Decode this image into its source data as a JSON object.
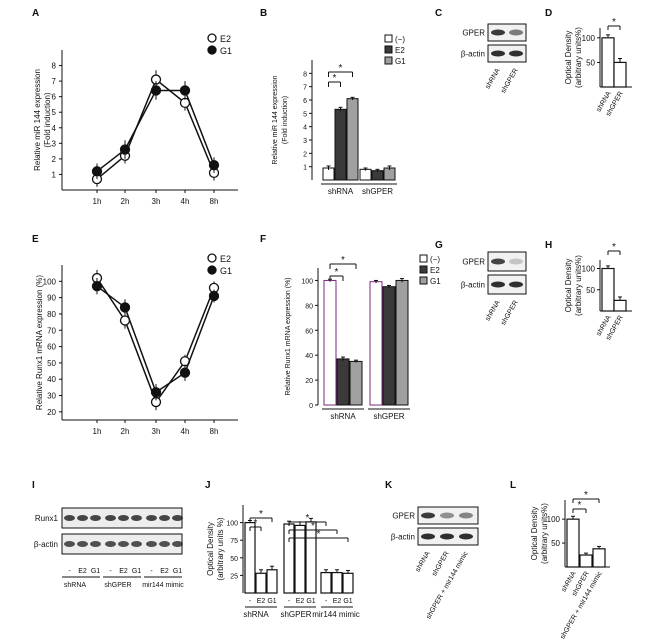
{
  "panels": [
    {
      "id": "A",
      "letter": "A",
      "type": "line",
      "ylabel": "Relative miR 144 expression",
      "ylabel2": "(Fold induction)",
      "categories": [
        "1h",
        "2h",
        "3h",
        "4h",
        "8h"
      ],
      "yticks": [
        "1",
        "2",
        "3",
        "4",
        "5",
        "6",
        "7",
        "8"
      ],
      "legend": [
        "E2",
        "G1"
      ]
    },
    {
      "id": "B",
      "letter": "B",
      "type": "bar",
      "ylabel": "Relative miR 144 expression",
      "ylabel2": "(Fold induction)",
      "yticks": [
        "1",
        "2",
        "3",
        "4",
        "5",
        "6",
        "7",
        "8"
      ],
      "groups": [
        "shRNA",
        "shGPER"
      ],
      "legend": [
        "(−)",
        "E2",
        "G1"
      ]
    },
    {
      "id": "C",
      "letter": "C",
      "type": "blot",
      "rows": [
        "GPER",
        "β-actin"
      ],
      "lanes": [
        "shRNA",
        "shGPER"
      ]
    },
    {
      "id": "D",
      "letter": "D",
      "type": "bar",
      "ylabel": "Optical Density",
      "ylabel2": "(arbitrary units%)",
      "yticks": [
        "50",
        "100"
      ],
      "groups": [
        "shRNA",
        "shGPER"
      ]
    },
    {
      "id": "E",
      "letter": "E",
      "type": "line",
      "ylabel": "Relative Runx1 mRNA expression (%)",
      "categories": [
        "1h",
        "2h",
        "3h",
        "4h",
        "8h"
      ],
      "yticks": [
        "20",
        "30",
        "40",
        "50",
        "60",
        "70",
        "80",
        "90",
        "100"
      ],
      "legend": [
        "E2",
        "G1"
      ]
    },
    {
      "id": "F",
      "letter": "F",
      "type": "bar",
      "ylabel": "Relative Runx1 mRNA expression (%)",
      "yticks": [
        "0",
        "20",
        "40",
        "60",
        "80",
        "100"
      ],
      "groups": [
        "shRNA",
        "shGPER"
      ],
      "legend": [
        "(−)",
        "E2",
        "G1"
      ]
    },
    {
      "id": "G",
      "letter": "G",
      "type": "blot",
      "rows": [
        "GPER",
        "β-actin"
      ],
      "lanes": [
        "shRNA",
        "shGPER"
      ]
    },
    {
      "id": "H",
      "letter": "H",
      "type": "bar",
      "ylabel": "Optical Density",
      "ylabel2": "(arbitrary units%)",
      "yticks": [
        "50",
        "100"
      ],
      "groups": [
        "shRNA",
        "shGPER"
      ]
    },
    {
      "id": "I",
      "letter": "I",
      "type": "blot",
      "rows": [
        "Runx1",
        "β-actin"
      ],
      "lane_labels": [
        "-",
        "E2",
        "G1",
        "-",
        "E2",
        "G1",
        "-",
        "E2",
        "G1"
      ],
      "groups": [
        "shRNA",
        "shGPER",
        "mir144 mimic"
      ]
    },
    {
      "id": "J",
      "letter": "J",
      "type": "bar",
      "ylabel": "Optical Density",
      "ylabel2": "(arbitrary units %)",
      "yticks": [
        "25",
        "50",
        "75",
        "100"
      ],
      "lane_labels": [
        "-",
        "E2",
        "G1",
        "-",
        "E2",
        "G1",
        "-",
        "E2",
        "G1"
      ],
      "groups": [
        "shRNA",
        "shGPER",
        "mir144 mimic"
      ]
    },
    {
      "id": "K",
      "letter": "K",
      "type": "blot",
      "rows": [
        "GPER",
        "β-actin"
      ],
      "lanes": [
        "shRNA",
        "shGPER",
        "shGPER + mir144 mimic"
      ]
    },
    {
      "id": "L",
      "letter": "L",
      "type": "bar",
      "ylabel": "Optical Density",
      "ylabel2": "(arbitrary units%)",
      "yticks": [
        "50",
        "100"
      ],
      "groups": [
        "shRNA",
        "shGPER",
        "shGPER + mir144 mimic"
      ]
    }
  ],
  "chart_data": [
    {
      "panel": "A",
      "type": "line",
      "categories": [
        "1h",
        "2h",
        "3h",
        "4h",
        "8h"
      ],
      "series": [
        {
          "name": "E2",
          "values": [
            0.7,
            2.2,
            7.1,
            5.6,
            1.1
          ],
          "errors": [
            0.5,
            0.5,
            0.6,
            0.5,
            0.5
          ]
        },
        {
          "name": "G1",
          "values": [
            1.2,
            2.6,
            6.4,
            6.4,
            1.6
          ],
          "errors": [
            0.5,
            0.6,
            0.6,
            0.6,
            0.5
          ]
        }
      ],
      "ylim": [
        0,
        9
      ]
    },
    {
      "panel": "B",
      "type": "bar",
      "categories": [
        "shRNA",
        "shGPER"
      ],
      "series": [
        {
          "name": "(−)",
          "values": [
            0.9,
            0.8
          ],
          "errors": [
            0.15,
            0.1
          ]
        },
        {
          "name": "E2",
          "values": [
            5.3,
            0.7
          ],
          "errors": [
            0.15,
            0.1
          ]
        },
        {
          "name": "G1",
          "values": [
            6.1,
            0.9
          ],
          "errors": [
            0.1,
            0.15
          ]
        }
      ],
      "ylim": [
        0,
        9
      ],
      "significance": [
        "*",
        "*"
      ]
    },
    {
      "panel": "D",
      "type": "bar",
      "categories": [
        "shRNA",
        "shGPER"
      ],
      "values": [
        100,
        50
      ],
      "errors": [
        6,
        8
      ],
      "ylim": [
        0,
        120
      ],
      "significance": [
        "*"
      ]
    },
    {
      "panel": "E",
      "type": "line",
      "categories": [
        "1h",
        "2h",
        "3h",
        "4h",
        "8h"
      ],
      "series": [
        {
          "name": "E2",
          "values": [
            102,
            76,
            26,
            51,
            96
          ],
          "errors": [
            5,
            5,
            5,
            4,
            4
          ]
        },
        {
          "name": "G1",
          "values": [
            97,
            84,
            32,
            44,
            91
          ],
          "errors": [
            5,
            5,
            5,
            5,
            4
          ]
        }
      ],
      "ylim": [
        15,
        110
      ]
    },
    {
      "panel": "F",
      "type": "bar",
      "categories": [
        "shRNA",
        "shGPER"
      ],
      "series": [
        {
          "name": "(−)",
          "values": [
            100,
            99
          ],
          "errors": [
            1,
            1
          ]
        },
        {
          "name": "E2",
          "values": [
            37,
            95
          ],
          "errors": [
            1.5,
            1
          ]
        },
        {
          "name": "G1",
          "values": [
            35,
            100
          ],
          "errors": [
            1,
            1.5
          ]
        }
      ],
      "ylim": [
        0,
        110
      ],
      "significance": [
        "*",
        "*"
      ]
    },
    {
      "panel": "H",
      "type": "bar",
      "categories": [
        "shRNA",
        "shGPER"
      ],
      "values": [
        100,
        25
      ],
      "errors": [
        6,
        8
      ],
      "ylim": [
        0,
        120
      ],
      "significance": [
        "*"
      ]
    },
    {
      "panel": "J",
      "type": "bar",
      "categories": [
        "-",
        "E2",
        "G1",
        "-",
        "E2",
        "G1",
        "-",
        "E2",
        "G1"
      ],
      "values": [
        100,
        28,
        33,
        98,
        96,
        101,
        29,
        29,
        28
      ],
      "errors": [
        3,
        5,
        5,
        4,
        5,
        5,
        4,
        4,
        4
      ],
      "ylim": [
        0,
        125
      ],
      "significance": [
        "*",
        "*",
        "*",
        "*",
        "*"
      ]
    },
    {
      "panel": "L",
      "type": "bar",
      "categories": [
        "shRNA",
        "shGPER",
        "shGPER + mir144 mimic"
      ],
      "values": [
        100,
        25,
        38
      ],
      "errors": [
        6,
        4,
        5
      ],
      "ylim": [
        0,
        140
      ],
      "significance": [
        "*",
        "*"
      ]
    }
  ]
}
